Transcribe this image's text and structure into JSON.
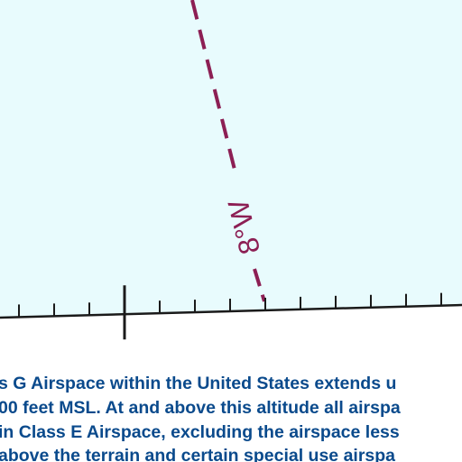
{
  "isogonic_line": {
    "label": "8°W",
    "color": "#8c1f54"
  },
  "colors": {
    "airspace_fill": "#e8fbfd",
    "boundary_line": "#1a1a1a",
    "note_text": "#0a4a8c"
  },
  "note": {
    "lines": [
      "s G Airspace within the United States extends u",
      "00 feet MSL. At and above this altitude all airspa",
      "in Class E Airspace, excluding the airspace less",
      "above the terrain and certain special use airspa"
    ]
  }
}
